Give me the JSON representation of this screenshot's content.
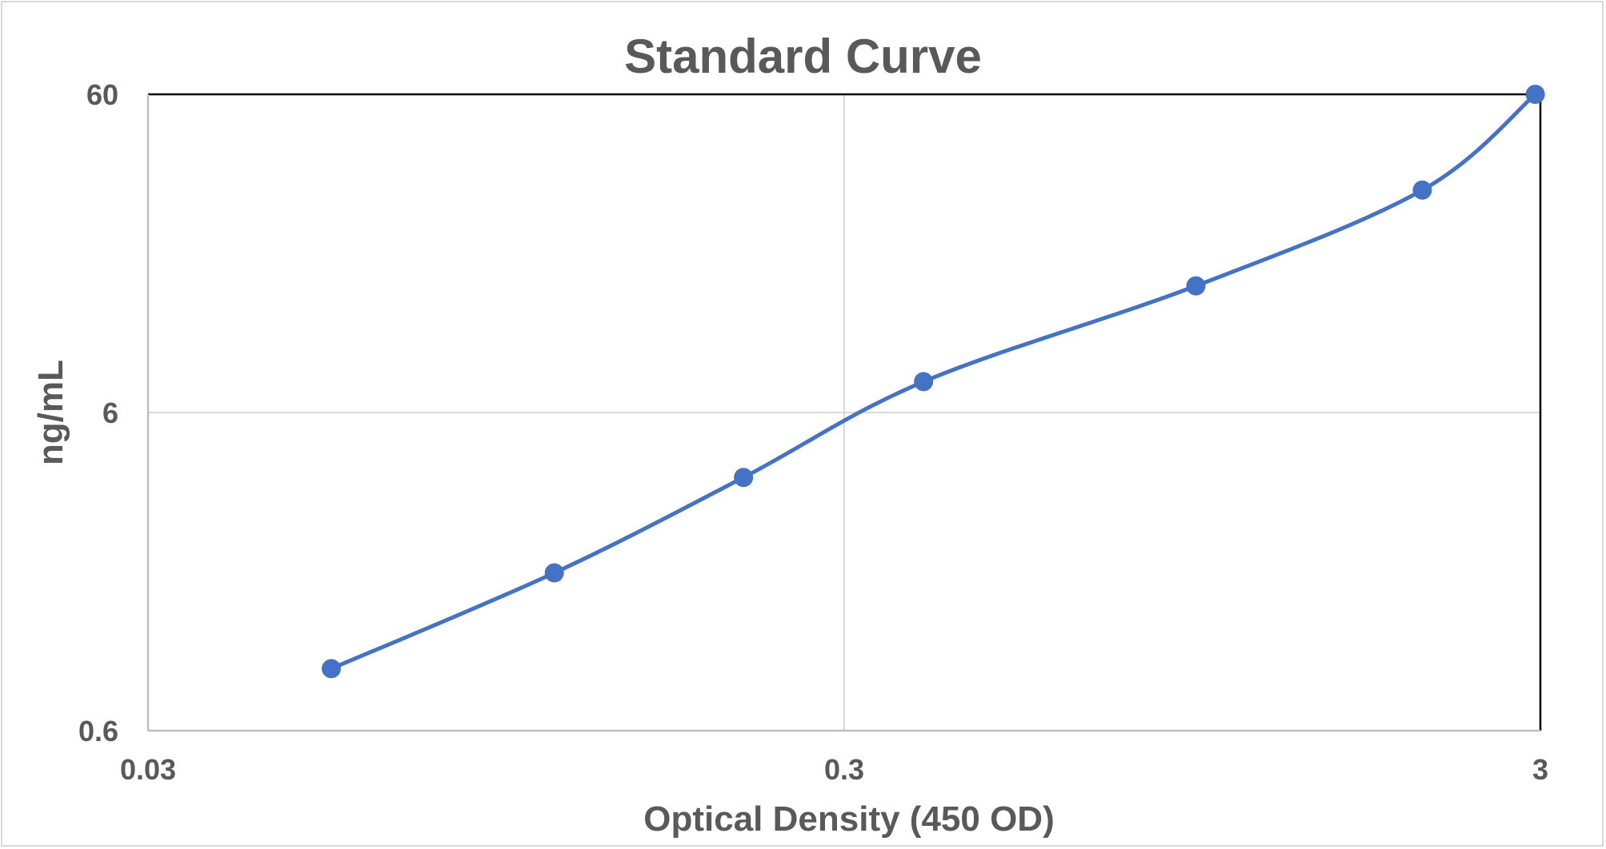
{
  "chart_data": {
    "type": "line",
    "title": "Standard Curve",
    "xlabel": "Optical Density (450 OD)",
    "ylabel": "ng/mL",
    "x_scale": "log",
    "y_scale": "log",
    "xlim": [
      0.03,
      3
    ],
    "ylim": [
      0.6,
      60
    ],
    "x_ticks": [
      "0.03",
      "0.3",
      "3"
    ],
    "y_ticks": [
      "0.6",
      "6",
      "60"
    ],
    "grid": true,
    "legend": "none",
    "series": [
      {
        "color": "#4472c4",
        "x": [
          0.055,
          0.115,
          0.215,
          0.39,
          0.96,
          2.03,
          2.95
        ],
        "y": [
          0.94,
          1.88,
          3.75,
          7.5,
          15,
          30,
          60
        ]
      }
    ]
  }
}
